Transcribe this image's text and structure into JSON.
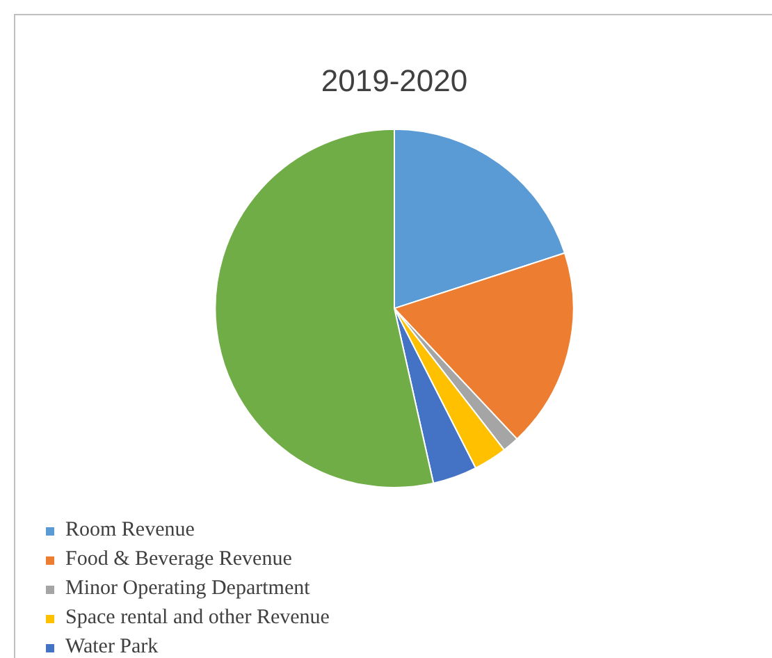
{
  "chart_data": {
    "type": "pie",
    "title": "2019-2020",
    "categories": [
      "Room Revenue",
      "Food & Beverage Revenue",
      "Minor Operating Department",
      "Space rental and other Revenue",
      "Water Park",
      null
    ],
    "values": [
      20,
      18,
      1.5,
      3,
      4,
      53.5
    ],
    "colors": [
      "#5b9bd5",
      "#ed7d31",
      "#a5a5a5",
      "#ffc000",
      "#4472c4",
      "#70ad47"
    ],
    "legend": "bottom left"
  }
}
